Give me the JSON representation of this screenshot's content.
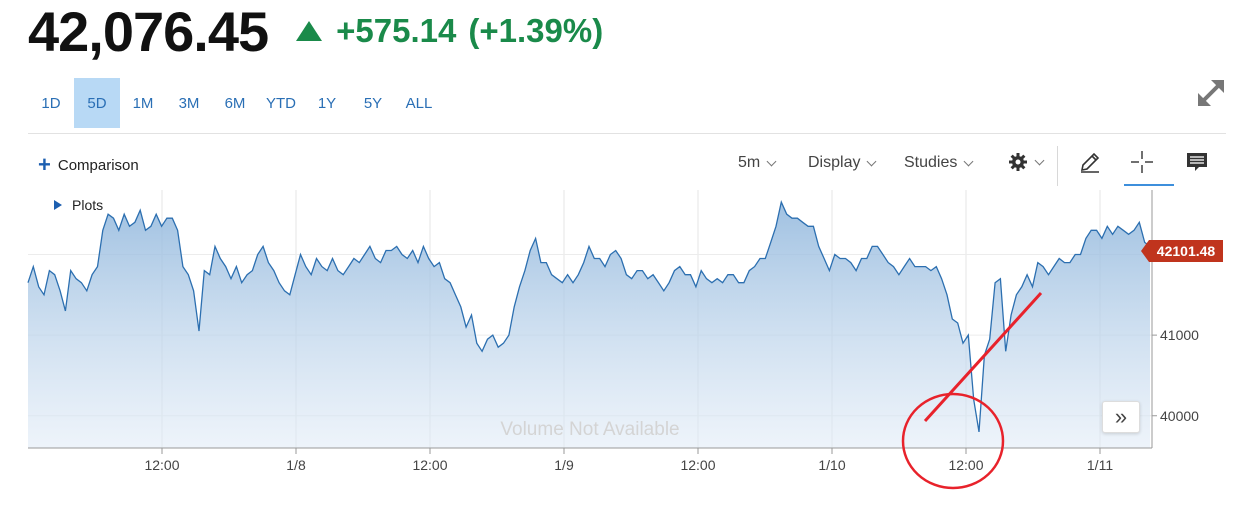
{
  "quote": {
    "price": "42,076.45",
    "change": "+575.14",
    "change_pct": "(+1.39%)",
    "direction": "up",
    "color_up": "#1a8a4a"
  },
  "ranges": [
    "1D",
    "5D",
    "1M",
    "3M",
    "6M",
    "YTD",
    "1Y",
    "5Y",
    "ALL"
  ],
  "active_range": "5D",
  "toolbar": {
    "comparison_label": "Comparison",
    "interval_label": "5m",
    "display_label": "Display",
    "studies_label": "Studies"
  },
  "plots_label": "Plots",
  "chart_data": {
    "type": "area",
    "title": "",
    "x_tick_labels": [
      "12:00",
      "1/8",
      "12:00",
      "1/9",
      "12:00",
      "1/10",
      "12:00",
      "1/11"
    ],
    "y_tick_labels": [
      "41000",
      "40000"
    ],
    "y_ticks": [
      42000,
      41000,
      40000
    ],
    "ylim": [
      39600,
      42800
    ],
    "grid": true,
    "last_price_label": "42101.48",
    "volume_note": "Volume Not Available",
    "line_color": "#2c6fb0",
    "annotation_color": "#e8222b",
    "series": [
      {
        "values": [
          41650,
          41850,
          41600,
          41500,
          41800,
          41750,
          41550,
          41300,
          41800,
          41700,
          41650,
          41550,
          41750,
          41850,
          42300,
          42500,
          42450,
          42300,
          42500,
          42350,
          42400,
          42550,
          42300,
          42350,
          42500,
          42350,
          42450,
          42450,
          42300,
          41850,
          41750,
          41550,
          41050,
          41800,
          41750,
          42100,
          41950,
          41850,
          41700,
          41850,
          41650,
          41750,
          41800,
          42000,
          42100,
          41900,
          41800,
          41650,
          41550,
          41500,
          41750,
          42000,
          41850,
          41750,
          41950,
          41850,
          41800,
          41950,
          41800,
          41750,
          41850,
          41950,
          41900,
          42000,
          42100,
          41950,
          41900,
          42050,
          42050,
          42100,
          42000,
          41950,
          42050,
          41900,
          42100,
          41950,
          41850,
          41900,
          41700,
          41650,
          41500,
          41350,
          41100,
          41250,
          40900,
          40800,
          40950,
          41000,
          40850,
          40900,
          41000,
          41350,
          41600,
          41800,
          42050,
          42200,
          41900,
          41900,
          41750,
          41700,
          41650,
          41750,
          41650,
          41750,
          41900,
          42100,
          41950,
          41950,
          41850,
          42000,
          42050,
          41950,
          41750,
          41700,
          41800,
          41800,
          41700,
          41750,
          41650,
          41550,
          41650,
          41800,
          41850,
          41750,
          41750,
          41600,
          41800,
          41700,
          41650,
          41700,
          41650,
          41750,
          41750,
          41650,
          41650,
          41800,
          41850,
          41950,
          41950,
          42150,
          42350,
          42650,
          42500,
          42450,
          42450,
          42400,
          42350,
          42350,
          42100,
          41950,
          41800,
          42000,
          41950,
          41950,
          41900,
          41800,
          41950,
          41950,
          42100,
          42100,
          42000,
          41900,
          41850,
          41750,
          41850,
          41950,
          41850,
          41850,
          41850,
          41800,
          41850,
          41700,
          41500,
          41200,
          41150,
          40900,
          41000,
          40200,
          39800,
          40750,
          40950,
          41650,
          41700,
          40800,
          41250,
          41500,
          41600,
          41750,
          41600,
          41900,
          41850,
          41750,
          41850,
          41950,
          41900,
          41900,
          42000,
          42000,
          42200,
          42300,
          42300,
          42200,
          42350,
          42250,
          42350,
          42300,
          42250,
          42300,
          42400,
          42150,
          42100
        ]
      }
    ]
  }
}
